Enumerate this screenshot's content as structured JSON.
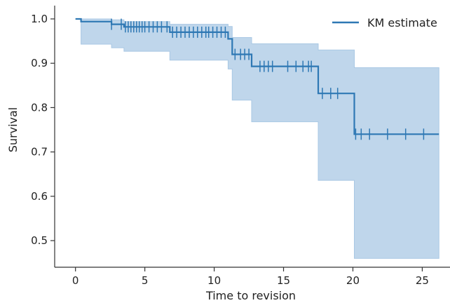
{
  "colors": {
    "line": "#2e78b4",
    "band": "#a9c8e4",
    "axis": "#333333"
  },
  "chart_data": {
    "type": "line",
    "title": "",
    "xlabel": "Time to revision",
    "ylabel": "Survival",
    "xlim": [
      -1.5,
      27.0
    ],
    "ylim": [
      0.44,
      1.03
    ],
    "xticks": [
      0,
      5,
      10,
      15,
      20,
      25
    ],
    "yticks": [
      0.5,
      0.6,
      0.7,
      0.8,
      0.9,
      1.0
    ],
    "xtick_labels": [
      "0",
      "5",
      "10",
      "15",
      "20",
      "25"
    ],
    "ytick_labels": [
      "0.5",
      "0.6",
      "0.7",
      "0.8",
      "0.9",
      "1.0"
    ],
    "grid": false,
    "legend_position": "top-right",
    "series": [
      {
        "name": "KM estimate",
        "step": "post",
        "x": [
          0,
          0.4,
          2.6,
          3.5,
          6.8,
          11.0,
          11.3,
          12.7,
          17.5,
          20.1,
          26.2
        ],
        "y": [
          1.0,
          0.994,
          0.988,
          0.982,
          0.97,
          0.955,
          0.92,
          0.893,
          0.832,
          0.74,
          0.74
        ],
        "ci_lower": [
          1.0,
          0.943,
          0.935,
          0.927,
          0.907,
          0.887,
          0.817,
          0.768,
          0.636,
          0.46,
          0.46
        ],
        "ci_upper": [
          1.0,
          1.0,
          0.998,
          0.994,
          0.988,
          0.983,
          0.958,
          0.944,
          0.93,
          0.89,
          0.89
        ],
        "censored": [
          2.6,
          3.3,
          3.6,
          3.8,
          4.0,
          4.2,
          4.4,
          4.6,
          4.8,
          5.0,
          5.3,
          5.6,
          5.9,
          6.2,
          6.6,
          7.0,
          7.3,
          7.6,
          7.9,
          8.2,
          8.5,
          8.8,
          9.1,
          9.4,
          9.6,
          9.9,
          10.2,
          10.5,
          10.8,
          11.5,
          11.9,
          12.2,
          12.5,
          13.3,
          13.6,
          13.9,
          14.2,
          15.3,
          15.9,
          16.4,
          16.8,
          17.0,
          17.8,
          18.4,
          18.9,
          20.2,
          20.6,
          21.2,
          22.5,
          23.8,
          25.1
        ]
      }
    ]
  }
}
